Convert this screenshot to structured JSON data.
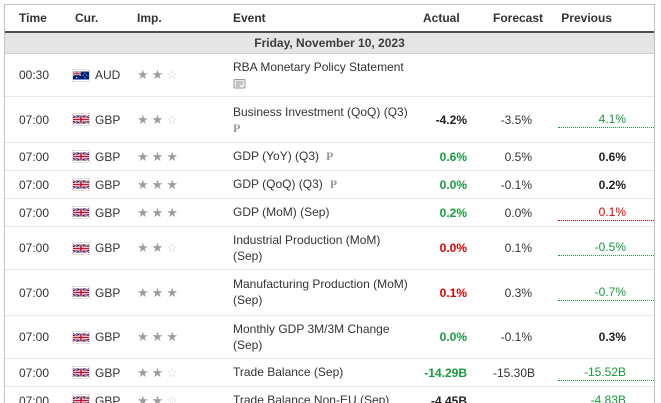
{
  "header": {
    "columns": [
      "Time",
      "Cur.",
      "Imp.",
      "Event",
      "Actual",
      "Forecast",
      "Previous"
    ]
  },
  "date_row": "Friday, November 10, 2023",
  "colors": {
    "green": "#169b3d",
    "red": "#dd0000",
    "black": "#222222",
    "plain": "#333333"
  },
  "icons": {
    "preliminary": "P",
    "report": "report-icon",
    "importance_filled": "★",
    "importance_empty": "☆"
  },
  "rows": [
    {
      "time": "00:30",
      "currency": "AUD",
      "flag": "au",
      "stars": 2,
      "event_lines": [
        "RBA Monetary Policy Statement"
      ],
      "marker": "report",
      "marker_pos": "below",
      "actual": null,
      "forecast": null,
      "previous": null,
      "height": "tall"
    },
    {
      "time": "07:00",
      "currency": "GBP",
      "flag": "gb",
      "stars": 2,
      "event_lines": [
        "Business Investment (QoQ) (Q3)"
      ],
      "marker": "P",
      "marker_pos": "below",
      "actual": {
        "text": "-4.2%",
        "color": "black",
        "bold": true
      },
      "forecast": {
        "text": "-3.5%"
      },
      "previous": {
        "text": "4.1%",
        "color": "green",
        "revised": true
      },
      "height": "tall2"
    },
    {
      "time": "07:00",
      "currency": "GBP",
      "flag": "gb",
      "stars": 3,
      "event_lines": [
        "GDP (YoY) (Q3)"
      ],
      "marker": "P",
      "marker_pos": "inline",
      "actual": {
        "text": "0.6%",
        "color": "green",
        "bold": true
      },
      "forecast": {
        "text": "0.5%"
      },
      "previous": {
        "text": "0.6%",
        "color": "black",
        "bold": true
      },
      "height": "single"
    },
    {
      "time": "07:00",
      "currency": "GBP",
      "flag": "gb",
      "stars": 3,
      "event_lines": [
        "GDP (QoQ) (Q3)"
      ],
      "marker": "P",
      "marker_pos": "inline",
      "actual": {
        "text": "0.0%",
        "color": "green",
        "bold": true
      },
      "forecast": {
        "text": "-0.1%"
      },
      "previous": {
        "text": "0.2%",
        "color": "black",
        "bold": true
      },
      "height": "single"
    },
    {
      "time": "07:00",
      "currency": "GBP",
      "flag": "gb",
      "stars": 3,
      "event_lines": [
        "GDP (MoM) (Sep)"
      ],
      "marker": null,
      "marker_pos": null,
      "actual": {
        "text": "0.2%",
        "color": "green",
        "bold": true
      },
      "forecast": {
        "text": "0.0%"
      },
      "previous": {
        "text": "0.1%",
        "color": "red",
        "revised": true
      },
      "height": "single"
    },
    {
      "time": "07:00",
      "currency": "GBP",
      "flag": "gb",
      "stars": 2,
      "event_lines": [
        "Industrial Production (MoM)",
        "(Sep)"
      ],
      "marker": null,
      "marker_pos": null,
      "actual": {
        "text": "0.0%",
        "color": "red",
        "bold": true
      },
      "forecast": {
        "text": "0.1%"
      },
      "previous": {
        "text": "-0.5%",
        "color": "green",
        "revised": true
      },
      "height": "tall"
    },
    {
      "time": "07:00",
      "currency": "GBP",
      "flag": "gb",
      "stars": 3,
      "event_lines": [
        "Manufacturing Production (MoM)",
        "(Sep)"
      ],
      "marker": null,
      "marker_pos": null,
      "actual": {
        "text": "0.1%",
        "color": "red",
        "bold": true
      },
      "forecast": {
        "text": "0.3%"
      },
      "previous": {
        "text": "-0.7%",
        "color": "green",
        "revised": true
      },
      "height": "tall2"
    },
    {
      "time": "07:00",
      "currency": "GBP",
      "flag": "gb",
      "stars": 3,
      "event_lines": [
        "Monthly GDP 3M/3M Change",
        "(Sep)"
      ],
      "marker": null,
      "marker_pos": null,
      "actual": {
        "text": "0.0%",
        "color": "green",
        "bold": true
      },
      "forecast": {
        "text": "-0.1%"
      },
      "previous": {
        "text": "0.3%",
        "color": "black",
        "bold": true
      },
      "height": "tall"
    },
    {
      "time": "07:00",
      "currency": "GBP",
      "flag": "gb",
      "stars": 2,
      "event_lines": [
        "Trade Balance (Sep)"
      ],
      "marker": null,
      "marker_pos": null,
      "actual": {
        "text": "-14.29B",
        "color": "green",
        "bold": true
      },
      "forecast": {
        "text": "-15.30B"
      },
      "previous": {
        "text": "-15.52B",
        "color": "green",
        "revised": true
      },
      "height": "single"
    },
    {
      "time": "07:00",
      "currency": "GBP",
      "flag": "gb",
      "stars": 2,
      "event_lines": [
        "Trade Balance Non-EU (Sep)"
      ],
      "marker": null,
      "marker_pos": null,
      "actual": {
        "text": "-4.45B",
        "color": "black",
        "bold": true
      },
      "forecast": null,
      "previous": {
        "text": "-4.83B",
        "color": "green",
        "revised": true
      },
      "height": "single"
    }
  ]
}
